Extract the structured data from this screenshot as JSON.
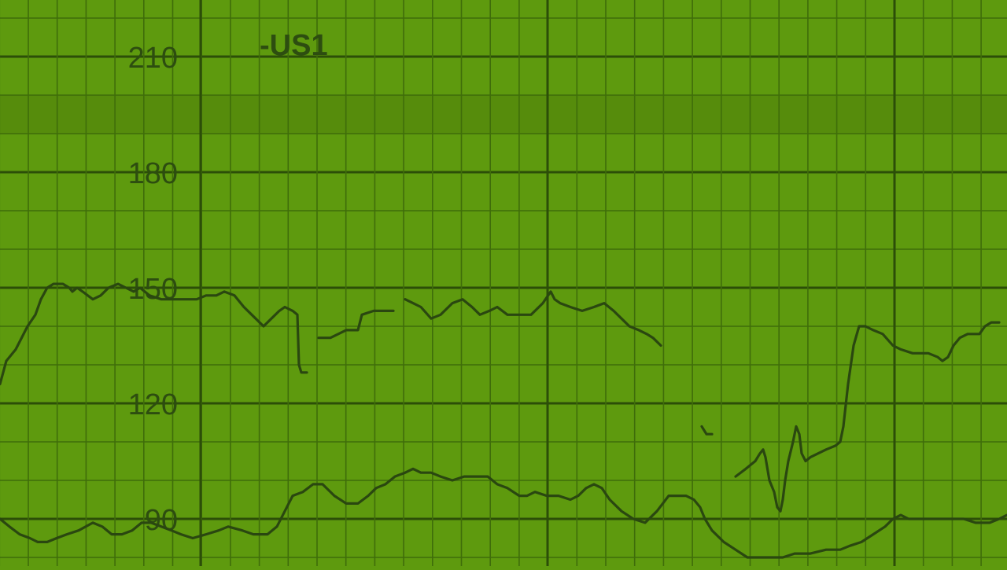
{
  "colors": {
    "background": "#5e9a0e",
    "band": "#568c0c",
    "grid_minor": "#3f6d0a",
    "grid_major": "#2c4e08",
    "trace": "#2a4710",
    "text": "#2d4d10"
  },
  "chart_data": {
    "type": "line",
    "title": "",
    "xlabel": "",
    "ylabel": "",
    "channel_label": "-US1",
    "y_tick_labels": [
      "210",
      "180",
      "150",
      "120",
      "90"
    ],
    "y_ticks": [
      210,
      180,
      150,
      120,
      90
    ],
    "ylim": [
      79,
      225
    ],
    "xlim": [
      0,
      1280
    ],
    "grid": true,
    "shaded_band": [
      190,
      200
    ],
    "series": [
      {
        "segments": [
          [
            [
              0,
              125
            ],
            [
              8,
              131
            ],
            [
              20,
              134
            ],
            [
              35,
              140
            ],
            [
              45,
              143
            ],
            [
              52,
              147
            ],
            [
              60,
              150
            ],
            [
              68,
              151
            ],
            [
              80,
              151
            ],
            [
              88,
              150
            ],
            [
              92,
              149
            ],
            [
              98,
              150
            ],
            [
              105,
              149
            ],
            [
              118,
              147
            ],
            [
              128,
              148
            ],
            [
              138,
              150
            ],
            [
              150,
              151
            ],
            [
              160,
              150
            ],
            [
              170,
              149
            ],
            [
              178,
              150
            ],
            [
              190,
              148
            ],
            [
              205,
              147
            ],
            [
              225,
              147
            ],
            [
              250,
              147
            ],
            [
              262,
              148
            ],
            [
              275,
              148
            ],
            [
              285,
              149
            ],
            [
              298,
              148
            ],
            [
              310,
              145
            ],
            [
              320,
              143
            ],
            [
              335,
              140
            ],
            [
              345,
              142
            ],
            [
              355,
              144
            ],
            [
              362,
              145
            ],
            [
              372,
              144
            ],
            [
              378,
              143
            ],
            [
              380,
              130
            ],
            [
              383,
              128
            ],
            [
              390,
              128
            ]
          ],
          [
            [
              405,
              137
            ],
            [
              420,
              137
            ],
            [
              430,
              138
            ],
            [
              440,
              139
            ],
            [
              455,
              139
            ],
            [
              460,
              143
            ],
            [
              475,
              144
            ],
            [
              500,
              144
            ]
          ],
          [
            [
              515,
              147
            ],
            [
              525,
              146
            ],
            [
              535,
              145
            ],
            [
              548,
              142
            ],
            [
              560,
              143
            ],
            [
              575,
              146
            ],
            [
              588,
              147
            ],
            [
              600,
              145
            ],
            [
              610,
              143
            ],
            [
              622,
              144
            ],
            [
              632,
              145
            ],
            [
              645,
              143
            ],
            [
              660,
              143
            ],
            [
              675,
              143
            ],
            [
              690,
              146
            ],
            [
              700,
              149
            ],
            [
              705,
              147
            ],
            [
              712,
              146
            ],
            [
              725,
              145
            ],
            [
              740,
              144
            ],
            [
              755,
              145
            ],
            [
              768,
              146
            ],
            [
              780,
              144
            ],
            [
              790,
              142
            ],
            [
              800,
              140
            ],
            [
              812,
              139
            ],
            [
              822,
              138
            ],
            [
              830,
              137
            ],
            [
              840,
              135
            ]
          ],
          [
            [
              892,
              114
            ],
            [
              898,
              112
            ],
            [
              905,
              112
            ]
          ],
          [
            [
              935,
              101
            ],
            [
              948,
              103
            ],
            [
              960,
              105
            ],
            [
              966,
              107
            ],
            [
              970,
              108
            ],
            [
              973,
              106
            ],
            [
              978,
              100
            ],
            [
              984,
              97
            ],
            [
              988,
              93
            ],
            [
              992,
              92
            ],
            [
              995,
              95
            ],
            [
              998,
              100
            ],
            [
              1002,
              105
            ],
            [
              1008,
              110
            ],
            [
              1012,
              114
            ],
            [
              1016,
              112
            ],
            [
              1019,
              107
            ],
            [
              1024,
              105
            ],
            [
              1030,
              106
            ],
            [
              1040,
              107
            ],
            [
              1050,
              108
            ],
            [
              1062,
              109
            ],
            [
              1068,
              110
            ],
            [
              1072,
              114
            ],
            [
              1078,
              125
            ],
            [
              1085,
              135
            ],
            [
              1092,
              140
            ],
            [
              1100,
              140
            ],
            [
              1110,
              139
            ],
            [
              1122,
              138
            ],
            [
              1135,
              135
            ],
            [
              1145,
              134
            ],
            [
              1160,
              133
            ],
            [
              1180,
              133
            ],
            [
              1192,
              132
            ],
            [
              1198,
              131
            ],
            [
              1205,
              132
            ],
            [
              1212,
              135
            ],
            [
              1220,
              137
            ],
            [
              1230,
              138
            ],
            [
              1245,
              138
            ],
            [
              1252,
              140
            ],
            [
              1260,
              141
            ],
            [
              1270,
              141
            ]
          ]
        ]
      },
      {
        "segments": [
          [
            [
              0,
              90
            ],
            [
              12,
              88
            ],
            [
              25,
              86
            ],
            [
              38,
              85
            ],
            [
              48,
              84
            ],
            [
              60,
              84
            ],
            [
              72,
              85
            ],
            [
              85,
              86
            ],
            [
              100,
              87
            ],
            [
              118,
              89
            ],
            [
              130,
              88
            ],
            [
              142,
              86
            ],
            [
              155,
              86
            ],
            [
              168,
              87
            ],
            [
              180,
              89
            ],
            [
              192,
              89
            ],
            [
              205,
              88
            ],
            [
              218,
              87
            ],
            [
              230,
              86
            ],
            [
              245,
              85
            ],
            [
              262,
              86
            ],
            [
              278,
              87
            ],
            [
              290,
              88
            ],
            [
              308,
              87
            ],
            [
              322,
              86
            ],
            [
              340,
              86
            ],
            [
              352,
              88
            ],
            [
              362,
              92
            ],
            [
              372,
              96
            ],
            [
              385,
              97
            ],
            [
              398,
              99
            ],
            [
              410,
              99
            ],
            [
              425,
              96
            ],
            [
              440,
              94
            ],
            [
              455,
              94
            ],
            [
              468,
              96
            ],
            [
              478,
              98
            ],
            [
              490,
              99
            ],
            [
              502,
              101
            ],
            [
              515,
              102
            ],
            [
              525,
              103
            ],
            [
              535,
              102
            ],
            [
              548,
              102
            ],
            [
              560,
              101
            ],
            [
              575,
              100
            ],
            [
              590,
              101
            ],
            [
              605,
              101
            ],
            [
              620,
              101
            ],
            [
              632,
              99
            ],
            [
              645,
              98
            ],
            [
              660,
              96
            ],
            [
              670,
              96
            ],
            [
              680,
              97
            ],
            [
              695,
              96
            ],
            [
              710,
              96
            ],
            [
              725,
              95
            ],
            [
              735,
              96
            ],
            [
              745,
              98
            ],
            [
              755,
              99
            ],
            [
              765,
              98
            ],
            [
              775,
              95
            ],
            [
              790,
              92
            ],
            [
              805,
              90
            ],
            [
              820,
              89
            ],
            [
              835,
              92
            ],
            [
              850,
              96
            ],
            [
              860,
              96
            ],
            [
              872,
              96
            ],
            [
              882,
              95
            ],
            [
              890,
              93
            ],
            [
              896,
              90
            ],
            [
              905,
              87
            ],
            [
              920,
              84
            ],
            [
              935,
              82
            ],
            [
              950,
              80
            ],
            [
              965,
              80
            ],
            [
              980,
              80
            ],
            [
              995,
              80
            ],
            [
              1010,
              81
            ],
            [
              1030,
              81
            ],
            [
              1050,
              82
            ],
            [
              1068,
              82
            ],
            [
              1080,
              83
            ],
            [
              1095,
              84
            ],
            [
              1110,
              86
            ],
            [
              1125,
              88
            ],
            [
              1135,
              90
            ],
            [
              1145,
              91
            ],
            [
              1155,
              90
            ],
            [
              1165,
              90
            ],
            [
              1180,
              90
            ],
            [
              1200,
              90
            ],
            [
              1225,
              90
            ],
            [
              1240,
              89
            ],
            [
              1258,
              89
            ],
            [
              1270,
              90
            ],
            [
              1280,
              91
            ]
          ]
        ]
      }
    ]
  }
}
